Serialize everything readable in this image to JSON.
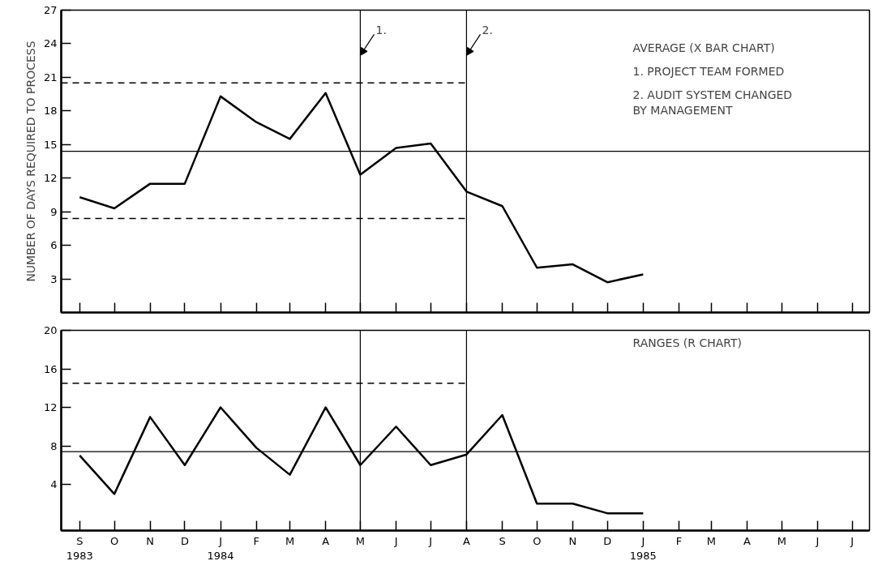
{
  "chart_data": [
    {
      "type": "line",
      "ylabel": "NUMBER OF DAYS REQUIRED TO PROCESS",
      "x": [
        "1983-09",
        "1983-10",
        "1983-11",
        "1983-12",
        "1984-01",
        "1984-02",
        "1984-03",
        "1984-04",
        "1984-05",
        "1984-06",
        "1984-07",
        "1984-08",
        "1984-09",
        "1984-10",
        "1984-11",
        "1984-12",
        "1985-01"
      ],
      "series": [
        {
          "color": "#000000",
          "values": [
            10.3,
            9.3,
            11.5,
            11.5,
            19.3,
            17.0,
            15.5,
            19.6,
            12.3,
            14.7,
            15.1,
            10.8,
            9.5,
            4.0,
            4.3,
            2.7,
            3.4
          ]
        },
        {
          "color": "#000000",
          "line_style": "dashed",
          "x": [
            "1983-08-16",
            "1984-08"
          ],
          "values": [
            20.5,
            20.5
          ]
        },
        {
          "color": "#000000",
          "line_style": "dashed",
          "x": [
            "1983-08-16",
            "1984-08"
          ],
          "values": [
            8.4,
            8.4
          ]
        }
      ],
      "ref_lines": [
        {
          "axis": "y",
          "value": 14.4
        },
        {
          "axis": "x",
          "value": "1984-05",
          "label": "1."
        },
        {
          "axis": "x",
          "value": "1984-08",
          "label": "2."
        }
      ],
      "annotations": [
        "AVERAGE (X BAR CHART)",
        "1. PROJECT TEAM FORMED",
        "2. AUDIT SYSTEM CHANGED\n   BY MANAGEMENT"
      ],
      "xlim": [
        "1983-08-16",
        "1985-07-16"
      ],
      "ylim": [
        0,
        27
      ],
      "yticks": [
        3,
        6,
        9,
        12,
        15,
        18,
        21,
        24,
        27
      ],
      "xticks": [
        {
          "value": "1983-09",
          "label": null
        },
        {
          "value": "1983-10",
          "label": null
        },
        {
          "value": "1983-11",
          "label": null
        },
        {
          "value": "1983-12",
          "label": null
        },
        {
          "value": "1984-01",
          "label": null
        },
        {
          "value": "1984-02",
          "label": null
        },
        {
          "value": "1984-03",
          "label": null
        },
        {
          "value": "1984-04",
          "label": null
        },
        {
          "value": "1984-05",
          "label": null
        },
        {
          "value": "1984-06",
          "label": null
        },
        {
          "value": "1984-07",
          "label": null
        },
        {
          "value": "1984-08",
          "label": null
        },
        {
          "value": "1984-09",
          "label": null
        },
        {
          "value": "1984-10",
          "label": null
        },
        {
          "value": "1984-11",
          "label": null
        },
        {
          "value": "1984-12",
          "label": null
        },
        {
          "value": "1985-01",
          "label": null
        },
        {
          "value": "1985-02",
          "label": null
        },
        {
          "value": "1985-03",
          "label": null
        },
        {
          "value": "1985-04",
          "label": null
        },
        {
          "value": "1985-05",
          "label": null
        },
        {
          "value": "1985-06",
          "label": null
        },
        {
          "value": "1985-07",
          "label": null
        }
      ],
      "tick_labels": "y",
      "grid": false,
      "marker": "none",
      "line_style": "solid"
    },
    {
      "type": "line",
      "x": [
        "1983-09",
        "1983-10",
        "1983-11",
        "1983-12",
        "1984-01",
        "1984-02",
        "1984-03",
        "1984-04",
        "1984-05",
        "1984-06",
        "1984-07",
        "1984-08",
        "1984-09",
        "1984-10",
        "1984-11",
        "1984-12",
        "1985-01"
      ],
      "series": [
        {
          "color": "#000000",
          "values": [
            7,
            3,
            11,
            6,
            12,
            7.8,
            5,
            12,
            6,
            10,
            6,
            7.1,
            11.2,
            2,
            2,
            1,
            1
          ]
        },
        {
          "color": "#000000",
          "line_style": "dashed",
          "x": [
            "1983-08-16",
            "1984-08"
          ],
          "values": [
            14.5,
            14.5
          ]
        }
      ],
      "ref_lines": [
        {
          "axis": "y",
          "value": 7.4
        },
        {
          "axis": "x",
          "value": "1984-05"
        },
        {
          "axis": "x",
          "value": "1984-08"
        }
      ],
      "annotations": [
        "RANGES (R CHART)"
      ],
      "xlim": [
        "1983-08-16",
        "1985-07-16"
      ],
      "ylim": [
        -0.8,
        20
      ],
      "yticks": [
        4,
        8,
        12,
        16,
        20
      ],
      "xticks": [
        {
          "value": "1983-09",
          "label": "S\n1983"
        },
        {
          "value": "1983-10",
          "label": "O"
        },
        {
          "value": "1983-11",
          "label": "N"
        },
        {
          "value": "1983-12",
          "label": "D"
        },
        {
          "value": "1984-01",
          "label": "J\n1984"
        },
        {
          "value": "1984-02",
          "label": "F"
        },
        {
          "value": "1984-03",
          "label": "M"
        },
        {
          "value": "1984-04",
          "label": "A"
        },
        {
          "value": "1984-05",
          "label": "M"
        },
        {
          "value": "1984-06",
          "label": "J"
        },
        {
          "value": "1984-07",
          "label": "J"
        },
        {
          "value": "1984-08",
          "label": "A"
        },
        {
          "value": "1984-09",
          "label": "S"
        },
        {
          "value": "1984-10",
          "label": "O"
        },
        {
          "value": "1984-11",
          "label": "N"
        },
        {
          "value": "1984-12",
          "label": "D"
        },
        {
          "value": "1985-01",
          "label": "J\n1985"
        },
        {
          "value": "1985-02",
          "label": "F"
        },
        {
          "value": "1985-03",
          "label": "M"
        },
        {
          "value": "1985-04",
          "label": "A"
        },
        {
          "value": "1985-05",
          "label": "M"
        },
        {
          "value": "1985-06",
          "label": "J"
        },
        {
          "value": "1985-07",
          "label": "J"
        }
      ],
      "grid": false,
      "marker": "none",
      "line_style": "solid"
    }
  ]
}
